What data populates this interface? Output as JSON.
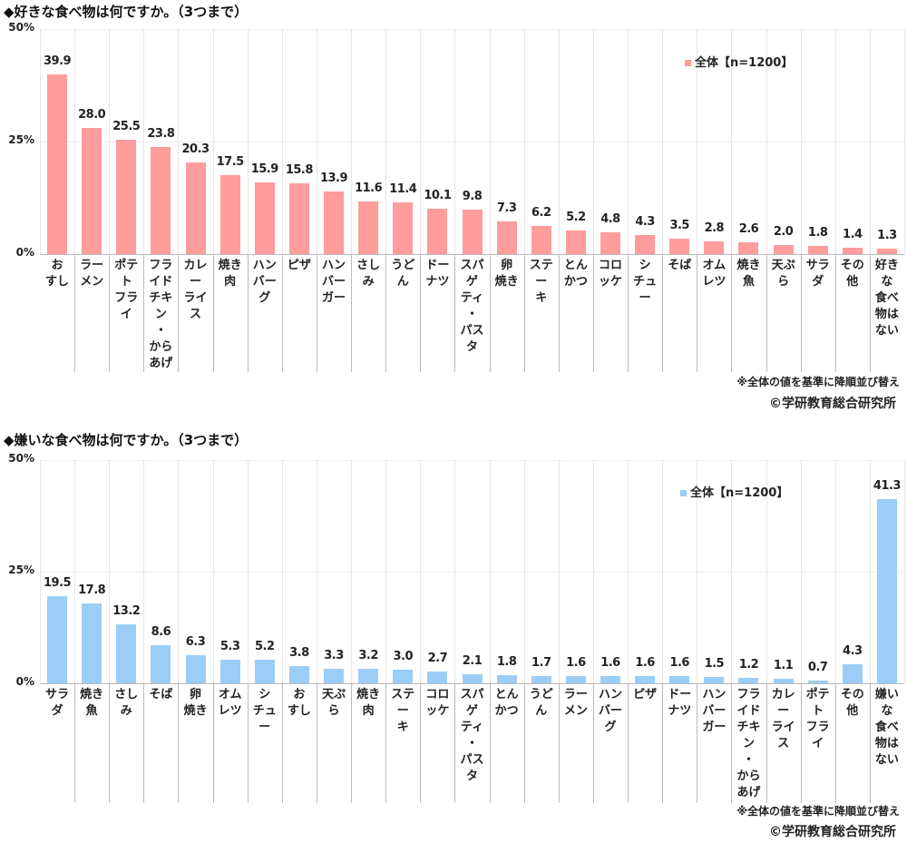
{
  "chart_data": [
    {
      "type": "bar",
      "title": "◆好きな食べ物は何ですか。（3つまで）",
      "yticks": [
        "50%",
        "25%",
        "0%"
      ],
      "ylim": [
        0,
        50
      ],
      "grid": true,
      "legend_position": "top-right",
      "color": "#ff9c9c",
      "series": [
        {
          "name": "全体【n=1200】",
          "values": [
            39.9,
            28.0,
            25.5,
            23.8,
            20.3,
            17.5,
            15.9,
            15.8,
            13.9,
            11.6,
            11.4,
            10.1,
            9.8,
            7.3,
            6.2,
            5.2,
            4.8,
            4.3,
            3.5,
            2.8,
            2.6,
            2.0,
            1.8,
            1.4,
            1.3
          ]
        }
      ],
      "value_labels": [
        "39.9",
        "28.0",
        "25.5",
        "23.8",
        "20.3",
        "17.5",
        "15.9",
        "15.8",
        "13.9",
        "11.6",
        "11.4",
        "10.1",
        "9.8",
        "7.3",
        "6.2",
        "5.2",
        "4.8",
        "4.3",
        "3.5",
        "2.8",
        "2.6",
        "2.0",
        "1.8",
        "1.4",
        "1.3"
      ],
      "categories": [
        "お\nすし",
        "ラー\nメン",
        "ポテ\nト\nフラ\nイ",
        "フラ\nイド\nチキ\nン\n・\nから\nあげ",
        "カレ\nー\nライ\nス",
        "焼き\n肉",
        "ハン\nバー\nグ",
        "ピザ",
        "ハン\nバー\nガー",
        "さし\nみ",
        "うど\nん",
        "ドー\nナツ",
        "スパ\nゲ\nティ\n・\nパス\nタ",
        "卵\n焼き",
        "ステ\nー\nキ",
        "とん\nかつ",
        "コロ\nッケ",
        "シ\nチュ\nー",
        "そば",
        "オム\nレツ",
        "焼き\n魚",
        "天ぷ\nら",
        "サラ\nダ",
        "その\n他",
        "好き\nな\n食べ\n物は\nない"
      ],
      "note": "※全体の値を基準に降順並び替え",
      "copyright": "©学研教育総合研究所"
    },
    {
      "type": "bar",
      "title": "◆嫌いな食べ物は何ですか。（3つまで）",
      "yticks": [
        "50%",
        "25%",
        "0%"
      ],
      "ylim": [
        0,
        50
      ],
      "grid": true,
      "legend_position": "top-right",
      "color": "#9ccdf6",
      "series": [
        {
          "name": "全体【n=1200】",
          "values": [
            19.5,
            17.8,
            13.2,
            8.6,
            6.3,
            5.3,
            5.2,
            3.8,
            3.3,
            3.2,
            3.0,
            2.7,
            2.1,
            1.8,
            1.7,
            1.6,
            1.6,
            1.6,
            1.6,
            1.5,
            1.2,
            1.1,
            0.7,
            4.3,
            41.3
          ]
        }
      ],
      "value_labels": [
        "19.5",
        "17.8",
        "13.2",
        "8.6",
        "6.3",
        "5.3",
        "5.2",
        "3.8",
        "3.3",
        "3.2",
        "3.0",
        "2.7",
        "2.1",
        "1.8",
        "1.7",
        "1.6",
        "1.6",
        "1.6",
        "1.6",
        "1.5",
        "1.2",
        "1.1",
        "0.7",
        "4.3",
        "41.3"
      ],
      "categories": [
        "サラ\nダ",
        "焼き\n魚",
        "さし\nみ",
        "そば",
        "卵\n焼き",
        "オム\nレツ",
        "シ\nチュ\nー",
        "お\nすし",
        "天ぷ\nら",
        "焼き\n肉",
        "ステ\nー\nキ",
        "コロ\nッケ",
        "スパ\nゲ\nティ\n・\nパス\nタ",
        "とん\nかつ",
        "うど\nん",
        "ラー\nメン",
        "ハン\nバー\nグ",
        "ピザ",
        "ドー\nナツ",
        "ハン\nバー\nガー",
        "フラ\nイド\nチキ\nン\n・\nから\nあげ",
        "カレ\nー\nライ\nス",
        "ポテ\nト\nフラ\nイ",
        "その\n他",
        "嫌い\nな\n食べ\n物は\nない"
      ],
      "note": "※全体の値を基準に降順並び替え",
      "copyright": "©学研教育総合研究所"
    }
  ]
}
